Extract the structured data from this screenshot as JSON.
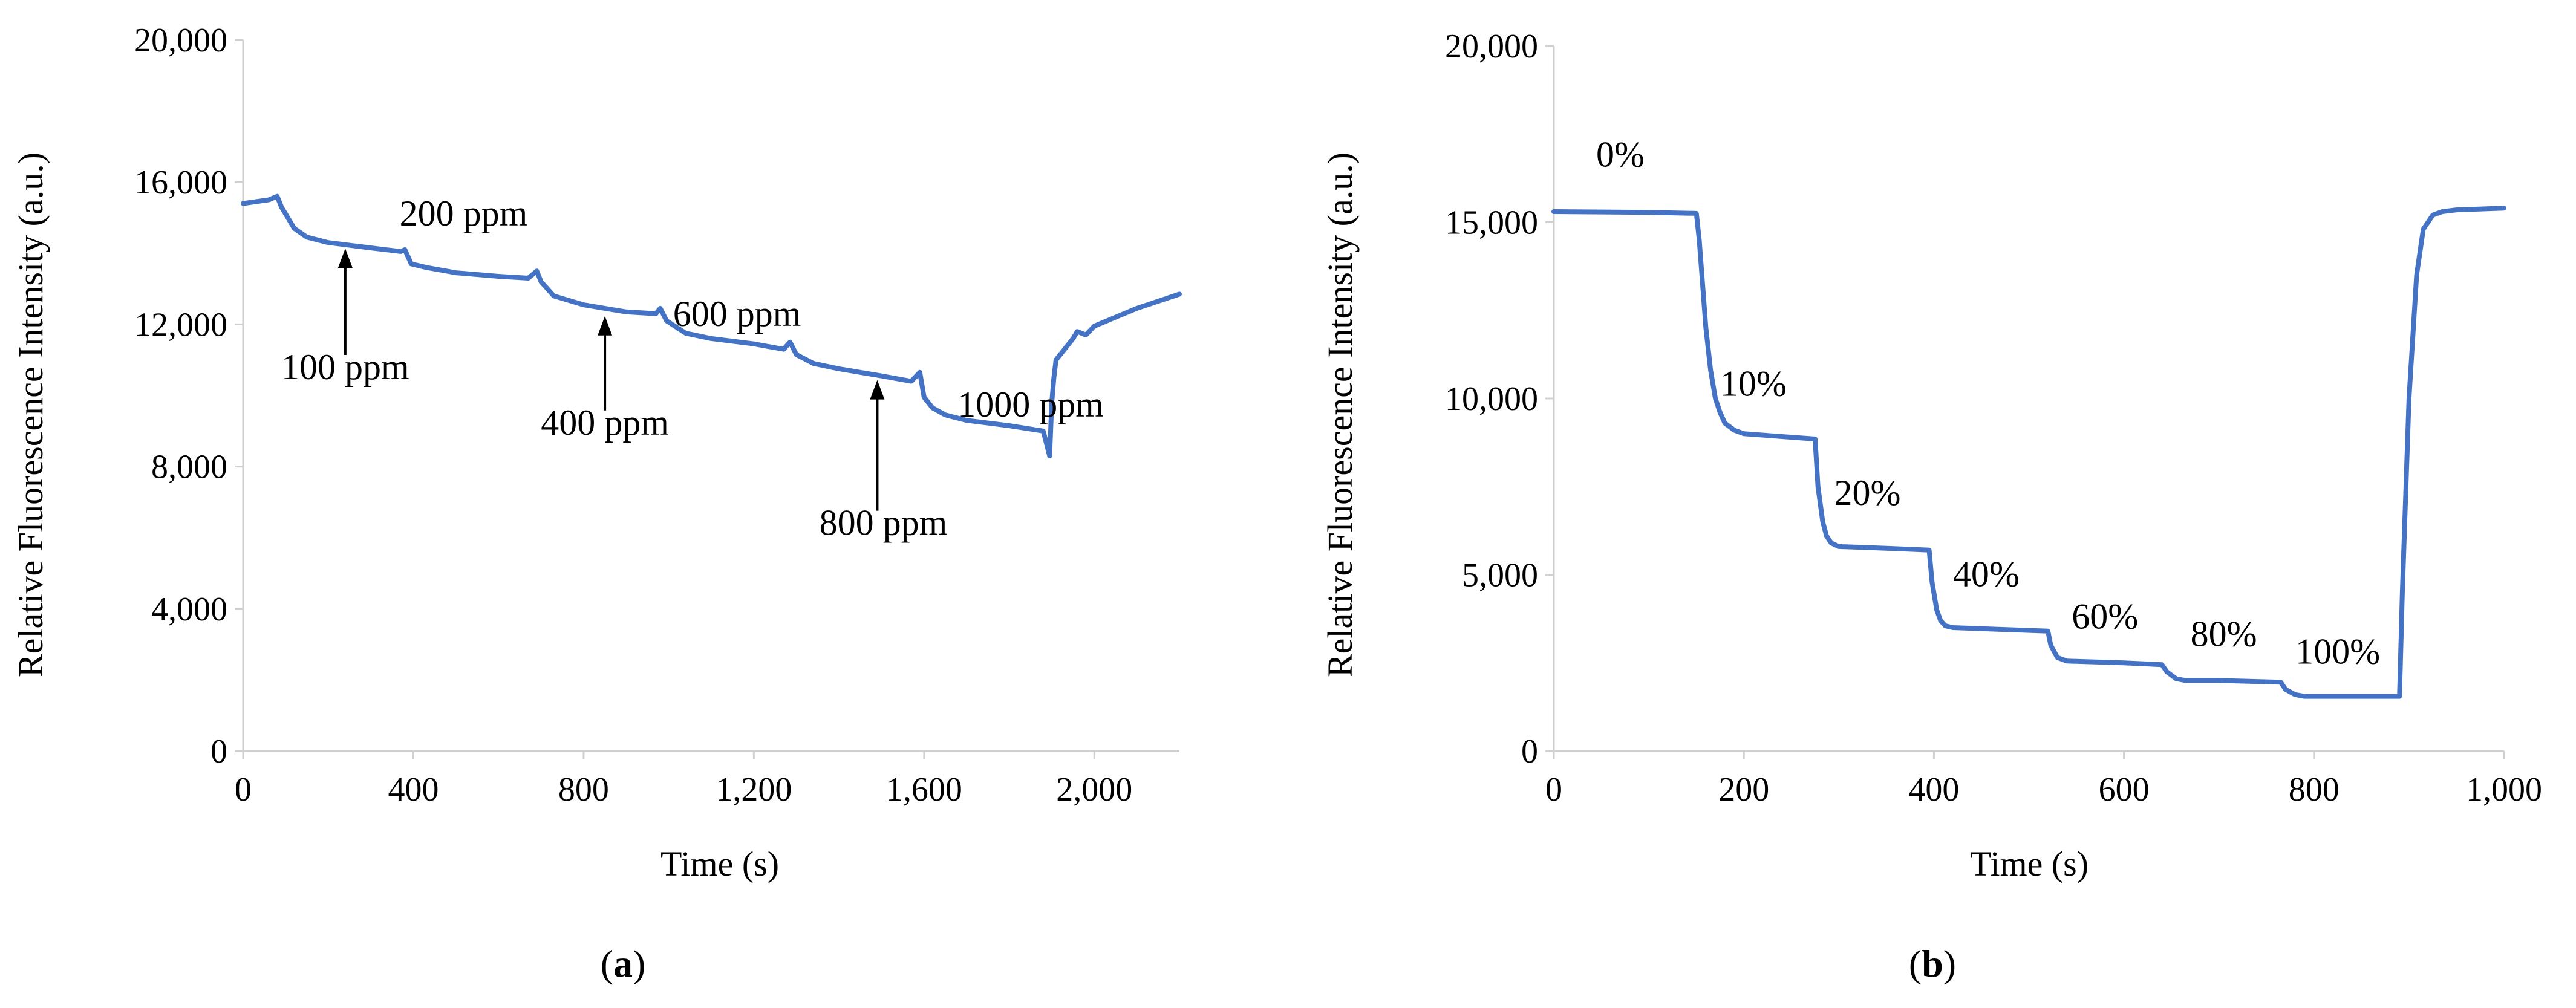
{
  "chart_data": [
    {
      "type": "line",
      "panel": "a",
      "caption": "(a)",
      "caption_parts": [
        "(",
        "a",
        ")"
      ],
      "xlabel": "Time (s)",
      "ylabel": "Relative Fluorescence Intensity (a.u.)",
      "xlim": [
        0,
        2200
      ],
      "ylim": [
        0,
        20000
      ],
      "xticks": [
        0,
        400,
        800,
        1200,
        1600,
        2000
      ],
      "xtick_labels": [
        "0",
        "400",
        "800",
        "1,200",
        "1,600",
        "2,000"
      ],
      "yticks": [
        0,
        4000,
        8000,
        12000,
        16000,
        20000
      ],
      "ytick_labels": [
        "0",
        "4,000",
        "8,000",
        "12,000",
        "16,000",
        "20,000"
      ],
      "color": "#4472c4",
      "series": [
        {
          "name": "fluorescence",
          "x": [
            0,
            60,
            80,
            90,
            120,
            150,
            200,
            300,
            370,
            380,
            395,
            430,
            500,
            600,
            670,
            690,
            700,
            730,
            800,
            900,
            970,
            980,
            995,
            1040,
            1100,
            1200,
            1270,
            1285,
            1300,
            1340,
            1400,
            1500,
            1570,
            1590,
            1600,
            1620,
            1650,
            1700,
            1800,
            1880,
            1895,
            1900,
            1905,
            1910,
            1930,
            1950,
            1960,
            1980,
            2000,
            2050,
            2100,
            2150,
            2200
          ],
          "y": [
            15400,
            15500,
            15600,
            15300,
            14700,
            14450,
            14300,
            14150,
            14050,
            14100,
            13700,
            13600,
            13450,
            13350,
            13300,
            13500,
            13200,
            12800,
            12550,
            12350,
            12300,
            12450,
            12100,
            11750,
            11600,
            11450,
            11300,
            11500,
            11150,
            10900,
            10750,
            10550,
            10400,
            10650,
            9950,
            9650,
            9450,
            9300,
            9150,
            9000,
            8300,
            9800,
            10500,
            11000,
            11300,
            11600,
            11800,
            11700,
            11950,
            12200,
            12450,
            12650,
            12850
          ]
        }
      ],
      "annotations": [
        {
          "text": "100 ppm",
          "x": 240,
          "y": 14200,
          "arrow": true
        },
        {
          "text": "200 ppm",
          "x": 390,
          "y": 14100,
          "arrow": false
        },
        {
          "text": "400 ppm",
          "x": 850,
          "y": 12300,
          "arrow": true
        },
        {
          "text": "600 ppm",
          "x": 990,
          "y": 12300,
          "arrow": false
        },
        {
          "text": "800 ppm",
          "x": 1490,
          "y": 10500,
          "arrow": true
        },
        {
          "text": "1000 ppm",
          "x": 1680,
          "y": 10000,
          "arrow": false
        }
      ]
    },
    {
      "type": "line",
      "panel": "b",
      "caption": "(b)",
      "caption_parts": [
        "(",
        "b",
        ")"
      ],
      "xlabel": "Time (s)",
      "ylabel": "Relative Fluorescence Intensity (a.u.)",
      "xlim": [
        0,
        1000
      ],
      "ylim": [
        0,
        20000
      ],
      "xticks": [
        0,
        200,
        400,
        600,
        800,
        1000
      ],
      "xtick_labels": [
        "0",
        "200",
        "400",
        "600",
        "800",
        "1,000"
      ],
      "yticks": [
        0,
        5000,
        10000,
        15000,
        20000
      ],
      "ytick_labels": [
        "0",
        "5,000",
        "10,000",
        "15,000",
        "20,000"
      ],
      "color": "#4472c4",
      "series": [
        {
          "name": "fluorescence",
          "x": [
            0,
            100,
            150,
            153,
            160,
            165,
            170,
            175,
            180,
            190,
            200,
            250,
            275,
            278,
            283,
            287,
            292,
            300,
            350,
            395,
            398,
            403,
            407,
            412,
            420,
            470,
            520,
            523,
            530,
            540,
            600,
            640,
            645,
            655,
            665,
            700,
            765,
            770,
            780,
            790,
            850,
            890,
            893,
            900,
            908,
            915,
            925,
            935,
            950,
            1000
          ],
          "y": [
            15300,
            15280,
            15250,
            14500,
            12000,
            10800,
            10000,
            9600,
            9300,
            9100,
            9000,
            8900,
            8850,
            7500,
            6500,
            6100,
            5900,
            5800,
            5750,
            5700,
            4800,
            4000,
            3700,
            3550,
            3500,
            3450,
            3400,
            3000,
            2650,
            2550,
            2500,
            2450,
            2250,
            2050,
            2000,
            2000,
            1950,
            1750,
            1600,
            1550,
            1550,
            1550,
            4500,
            10000,
            13500,
            14800,
            15200,
            15300,
            15350,
            15400
          ]
        }
      ],
      "annotations": [
        {
          "text": "0%",
          "x": 70,
          "y": 16200,
          "arrow": false
        },
        {
          "text": "10%",
          "x": 210,
          "y": 9700,
          "arrow": false
        },
        {
          "text": "20%",
          "x": 330,
          "y": 6600,
          "arrow": false
        },
        {
          "text": "40%",
          "x": 455,
          "y": 4300,
          "arrow": false
        },
        {
          "text": "60%",
          "x": 580,
          "y": 3100,
          "arrow": false
        },
        {
          "text": "80%",
          "x": 705,
          "y": 2600,
          "arrow": false
        },
        {
          "text": "100%",
          "x": 825,
          "y": 2100,
          "arrow": false
        }
      ]
    }
  ]
}
